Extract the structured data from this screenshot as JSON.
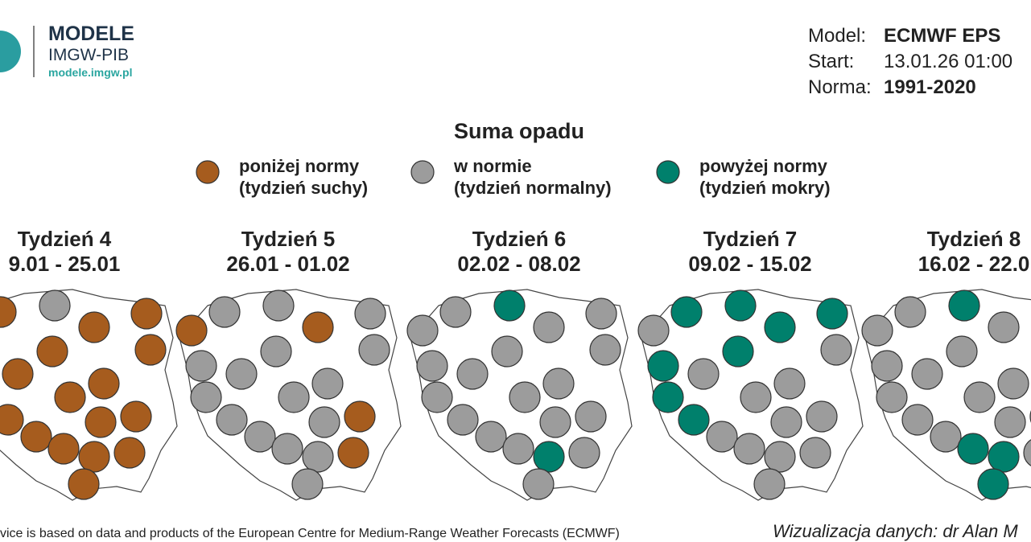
{
  "header": {
    "brand": "MODELE",
    "org": "IMGW-PIB",
    "url": "modele.imgw.pl"
  },
  "meta": [
    {
      "label": "Model:",
      "value": "ECMWF EPS"
    },
    {
      "label": "Start:",
      "value": "13.01.26 01:00"
    },
    {
      "label": "Norma:",
      "value": "1991-2020"
    }
  ],
  "title": "Suma opadu",
  "legend": [
    {
      "line1": "poniżej normy",
      "line2": "(tydzień suchy)"
    },
    {
      "line1": "w normie",
      "line2": "(tydzień normalny)"
    },
    {
      "line1": "powyżej normy",
      "line2": "(tydzień mokry)"
    }
  ],
  "weeks": [
    {
      "title": "Tydzień 4",
      "dates": "9.01 - 25.01"
    },
    {
      "title": "Tydzień 5",
      "dates": "26.01 - 01.02"
    },
    {
      "title": "Tydzień 6",
      "dates": "02.02 - 08.02"
    },
    {
      "title": "Tydzień 7",
      "dates": "09.02 - 15.02"
    },
    {
      "title": "Tydzień 8",
      "dates": "16.02 - 22.0"
    }
  ],
  "footer": {
    "left": "vice is based on data and products of the European Centre for Medium-Range Weather Forecasts (ECMWF)",
    "right": "Wizualizacja danych: dr Alan M"
  }
}
